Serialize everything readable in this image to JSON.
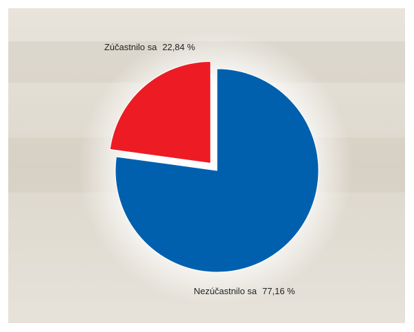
{
  "chart_data": {
    "type": "pie",
    "categories": [
      "Zúčastnilo sa",
      "Nezúčastnilo sa"
    ],
    "values": [
      22.84,
      77.16
    ],
    "value_labels": [
      "22,84 %",
      "77,16 %"
    ],
    "colors": [
      "#ed1c24",
      "#0060ae"
    ],
    "exploded": [
      true,
      false
    ]
  }
}
